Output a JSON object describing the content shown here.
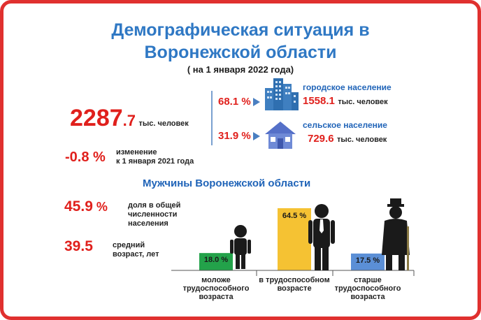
{
  "title_line1": "Демографическая ситуация в",
  "title_line2": "Воронежской области",
  "subtitle": "( на 1 января 2022 года)",
  "total": {
    "int": "2287",
    "dec": ".7",
    "unit": "тыс. человек"
  },
  "change": {
    "value": "-0.8 %",
    "label_line1": "изменение",
    "label_line2": "к 1 января 2021 года"
  },
  "urban": {
    "percent": "68.1 %",
    "label": "городское население",
    "value": "1558.1",
    "unit": "тыс. человек"
  },
  "rural": {
    "percent": "31.9 %",
    "label": "сельское население",
    "value": "729.6",
    "unit": "тыс. человек"
  },
  "men": {
    "heading": "Мужчины  Воронежской области",
    "share_int": "45.9",
    "share_pct": " %",
    "share_label_l1": "доля в общей",
    "share_label_l2": "численности",
    "share_label_l3": "населения",
    "age_int": "39.5",
    "age_label_l1": "средний",
    "age_label_l2": "возраст, лет"
  },
  "chart_data": {
    "type": "bar",
    "categories": [
      "моложе трудоспособного возраста",
      "в трудоспособном возрасте",
      "старше трудоспособного возраста"
    ],
    "values": [
      18.0,
      64.5,
      17.5
    ],
    "value_labels": [
      "18.0 %",
      "64.5 %",
      "17.5 %"
    ],
    "colors": [
      "#23a24a",
      "#f5c233",
      "#5b8fd6"
    ],
    "cat_lines": [
      [
        "моложе",
        "трудоспособного",
        "возраста"
      ],
      [
        "в трудоспособном",
        "возрасте"
      ],
      [
        "старше",
        "трудоспособного",
        "возраста"
      ]
    ]
  }
}
